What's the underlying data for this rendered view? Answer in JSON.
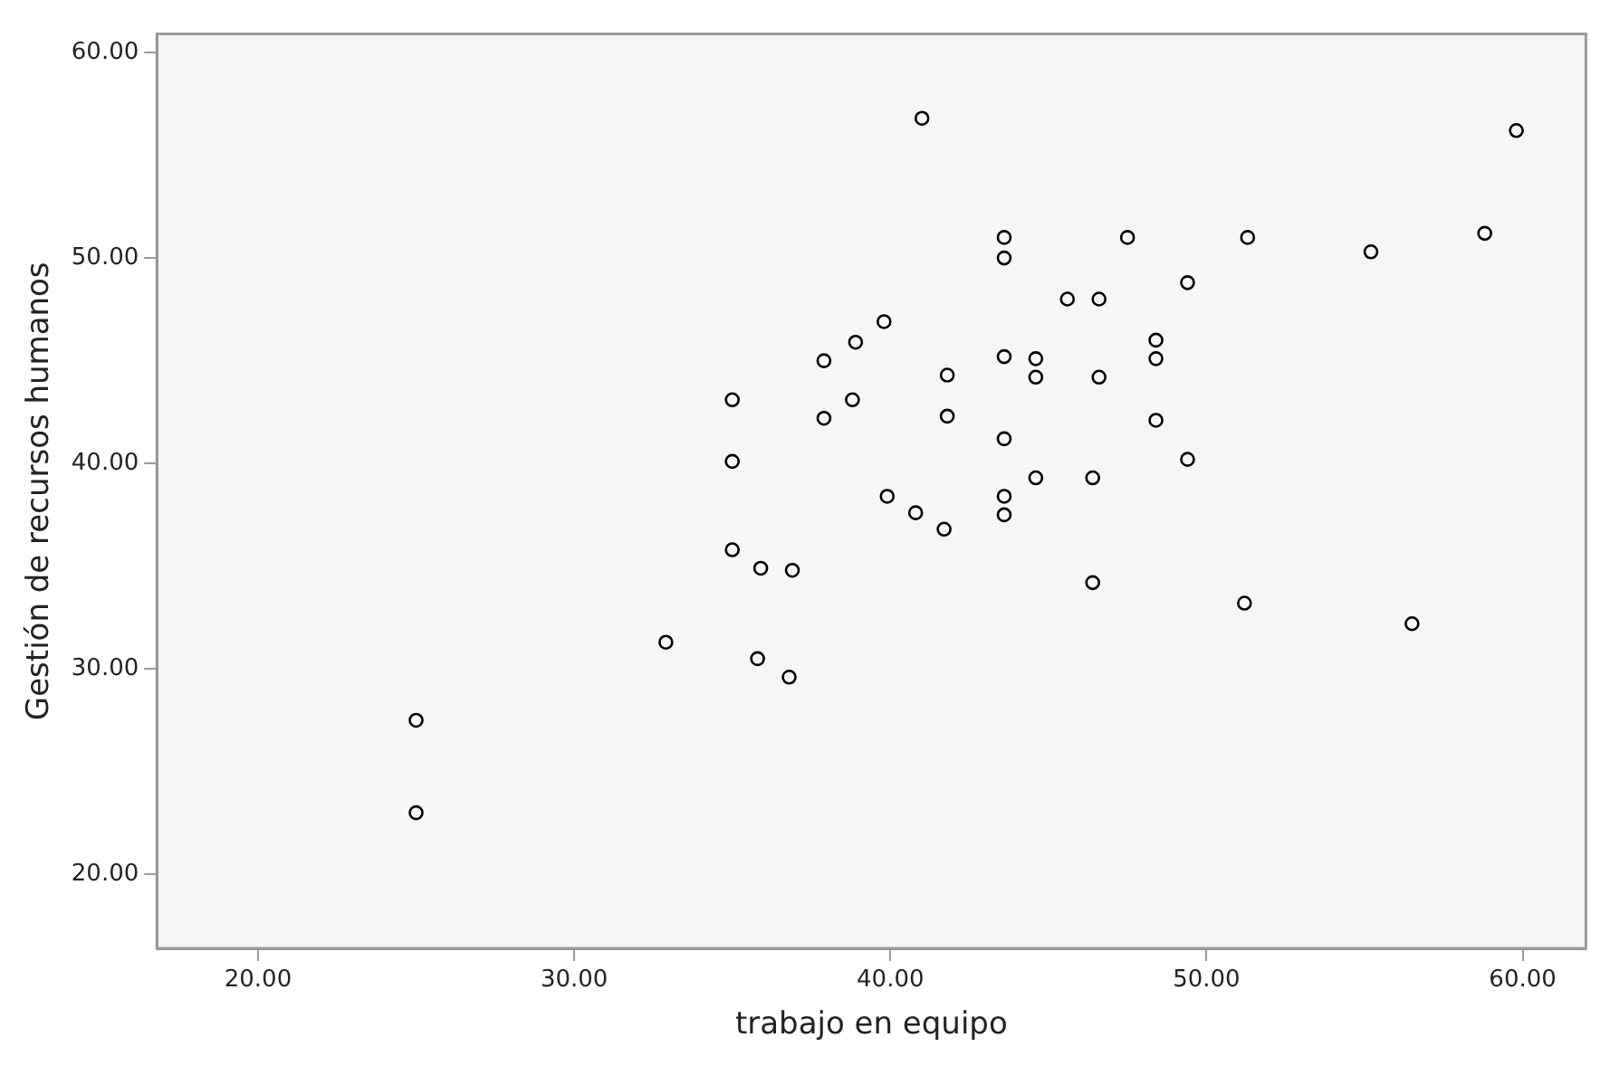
{
  "chart_data": {
    "type": "scatter",
    "xlabel": "trabajo en equipo",
    "ylabel": "Gestión de recursos humanos",
    "x": [
      25.0,
      25.0,
      32.9,
      35.0,
      35.9,
      35.8,
      36.9,
      36.8,
      35.0,
      35.0,
      41.0,
      59.8,
      43.6,
      43.6,
      47.5,
      51.3,
      55.2,
      58.8,
      49.4,
      45.6,
      46.6,
      39.8,
      38.9,
      37.9,
      43.6,
      44.6,
      44.6,
      48.4,
      48.4,
      41.8,
      46.6,
      38.8,
      37.9,
      41.8,
      48.4,
      43.6,
      49.4,
      44.6,
      46.4,
      39.9,
      43.6,
      40.8,
      43.6,
      41.7,
      46.4,
      51.2,
      56.5
    ],
    "series": [
      {
        "color": "#000000",
        "values": [
          27.5,
          23.0,
          31.3,
          35.8,
          34.9,
          30.5,
          34.8,
          29.6,
          40.1,
          43.1,
          56.8,
          56.2,
          51.0,
          50.0,
          51.0,
          51.0,
          50.3,
          51.2,
          48.8,
          48.0,
          48.0,
          46.9,
          45.9,
          45.0,
          45.2,
          45.1,
          44.2,
          46.0,
          45.1,
          44.3,
          44.2,
          43.1,
          42.2,
          42.3,
          42.1,
          41.2,
          40.2,
          39.3,
          39.3,
          38.4,
          38.4,
          37.6,
          37.5,
          36.8,
          34.2,
          33.2,
          32.2
        ]
      }
    ],
    "xlim": [
      16.8,
      62
    ],
    "ylim": [
      16.4,
      60.9
    ],
    "xticks": [
      {
        "value": 20,
        "label": "20.00"
      },
      {
        "value": 30,
        "label": "30.00"
      },
      {
        "value": 40,
        "label": "40.00"
      },
      {
        "value": 50,
        "label": "50.00"
      },
      {
        "value": 60,
        "label": "60.00"
      }
    ],
    "yticks": [
      {
        "value": 20,
        "label": "20.00"
      },
      {
        "value": 30,
        "label": "30.00"
      },
      {
        "value": 40,
        "label": "40.00"
      },
      {
        "value": 50,
        "label": "50.00"
      },
      {
        "value": 60,
        "label": "60.00"
      }
    ],
    "grid": false,
    "legend": false,
    "marker": "circle"
  }
}
